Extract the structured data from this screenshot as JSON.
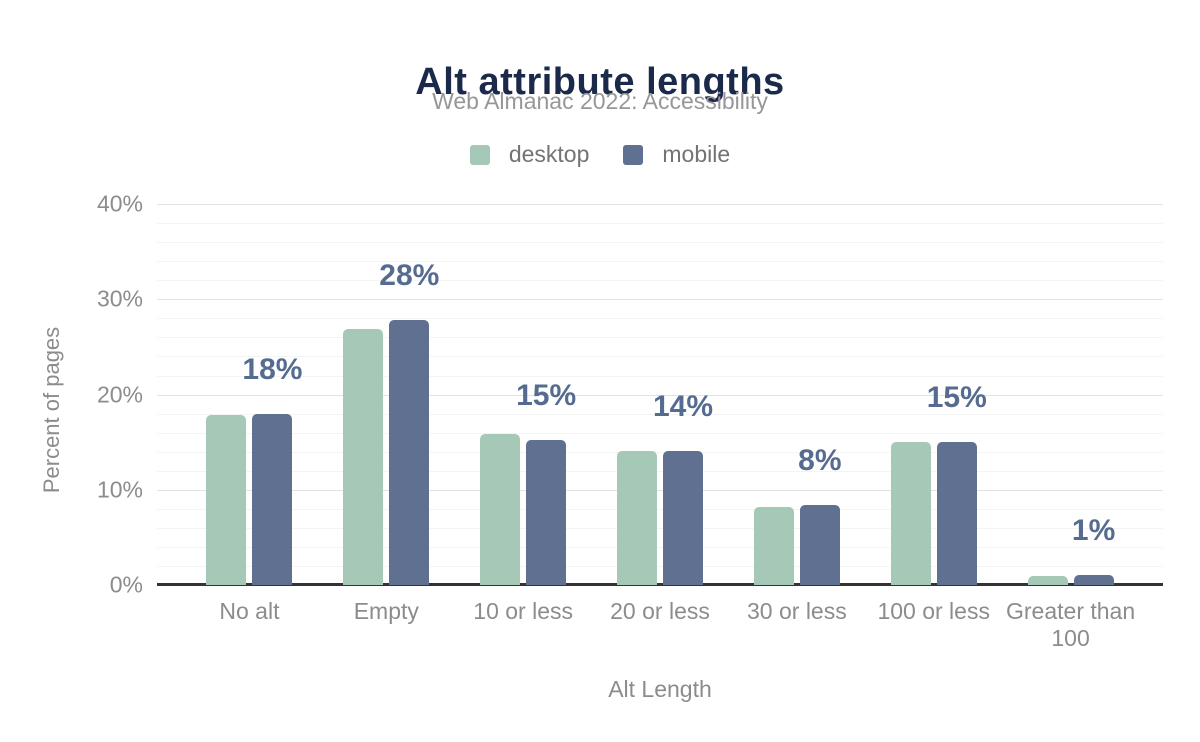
{
  "chart_data": {
    "type": "bar",
    "title": "Alt attribute lengths",
    "subtitle": "Web Almanac 2022: Accessibility",
    "categories": [
      "No alt",
      "Empty",
      "10 or less",
      "20 or less",
      "30 or less",
      "100 or less",
      "Greater than 100"
    ],
    "series": [
      {
        "name": "desktop",
        "color": "#a6c9b7",
        "values": [
          17.9,
          26.9,
          15.9,
          14.1,
          8.2,
          15.0,
          1.0
        ]
      },
      {
        "name": "mobile",
        "color": "#5f7090",
        "values": [
          18.0,
          27.8,
          15.2,
          14.1,
          8.4,
          15.0,
          1.1
        ]
      }
    ],
    "value_labels": [
      "18%",
      "28%",
      "15%",
      "14%",
      "8%",
      "15%",
      "1%"
    ],
    "value_labels_series": "mobile",
    "xlabel": "Alt Length",
    "ylabel": "Percent of pages",
    "ylim": [
      0,
      40
    ],
    "yticks": [
      0,
      10,
      20,
      30,
      40
    ],
    "ytick_suffix": "%",
    "minor_tick_step": 2,
    "grid": true,
    "legend_position": "top",
    "colors": {
      "title": "#1b2a4a",
      "subtitle": "#979797",
      "axis_text": "#8c8c8c",
      "value_label": "#566b90",
      "gridline_major": "#e2e2e2",
      "gridline_minor": "#f4f4f4",
      "axis_line": "#333333",
      "legend_text": "#737373"
    }
  }
}
